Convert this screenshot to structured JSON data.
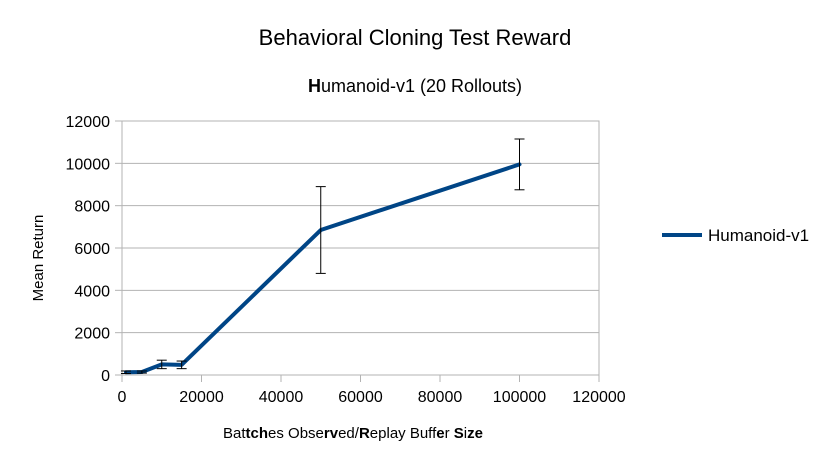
{
  "chart_data": {
    "type": "line",
    "title": "Behavioral Cloning Test Reward",
    "subtitle": "Humanoid-v1 (20 Rollouts)",
    "subtitle_bold_prefix": "H",
    "subtitle_rest": "umanoid-v1 (20 Rollouts)",
    "xlabel": "Batches Observed/Replay Buffer Size",
    "xlabel_segments": [
      {
        "text": "Bat",
        "bold": false
      },
      {
        "text": "tch",
        "bold": true
      },
      {
        "text": "es Obse",
        "bold": false
      },
      {
        "text": "rv",
        "bold": true
      },
      {
        "text": "ed/",
        "bold": false
      },
      {
        "text": "R",
        "bold": true
      },
      {
        "text": "eplay Buff",
        "bold": false
      },
      {
        "text": "e",
        "bold": true
      },
      {
        "text": "r ",
        "bold": false
      },
      {
        "text": "S",
        "bold": true
      },
      {
        "text": "i",
        "bold": false
      },
      {
        "text": "ze",
        "bold": true
      }
    ],
    "ylabel": "Mean Return",
    "xlim": [
      0,
      120000
    ],
    "ylim": [
      0,
      12000
    ],
    "xticks": [
      0,
      20000,
      40000,
      60000,
      80000,
      100000,
      120000
    ],
    "yticks": [
      0,
      2000,
      4000,
      6000,
      8000,
      10000,
      12000
    ],
    "grid": "horizontal",
    "legend_position": "right",
    "series": [
      {
        "name": "Humanoid-v1",
        "color": "#004586",
        "x": [
          1000,
          5000,
          10000,
          15000,
          50000,
          100000
        ],
        "y": [
          130,
          140,
          500,
          480,
          6850,
          9950
        ],
        "error": [
          60,
          50,
          200,
          180,
          2050,
          1200
        ]
      }
    ]
  }
}
